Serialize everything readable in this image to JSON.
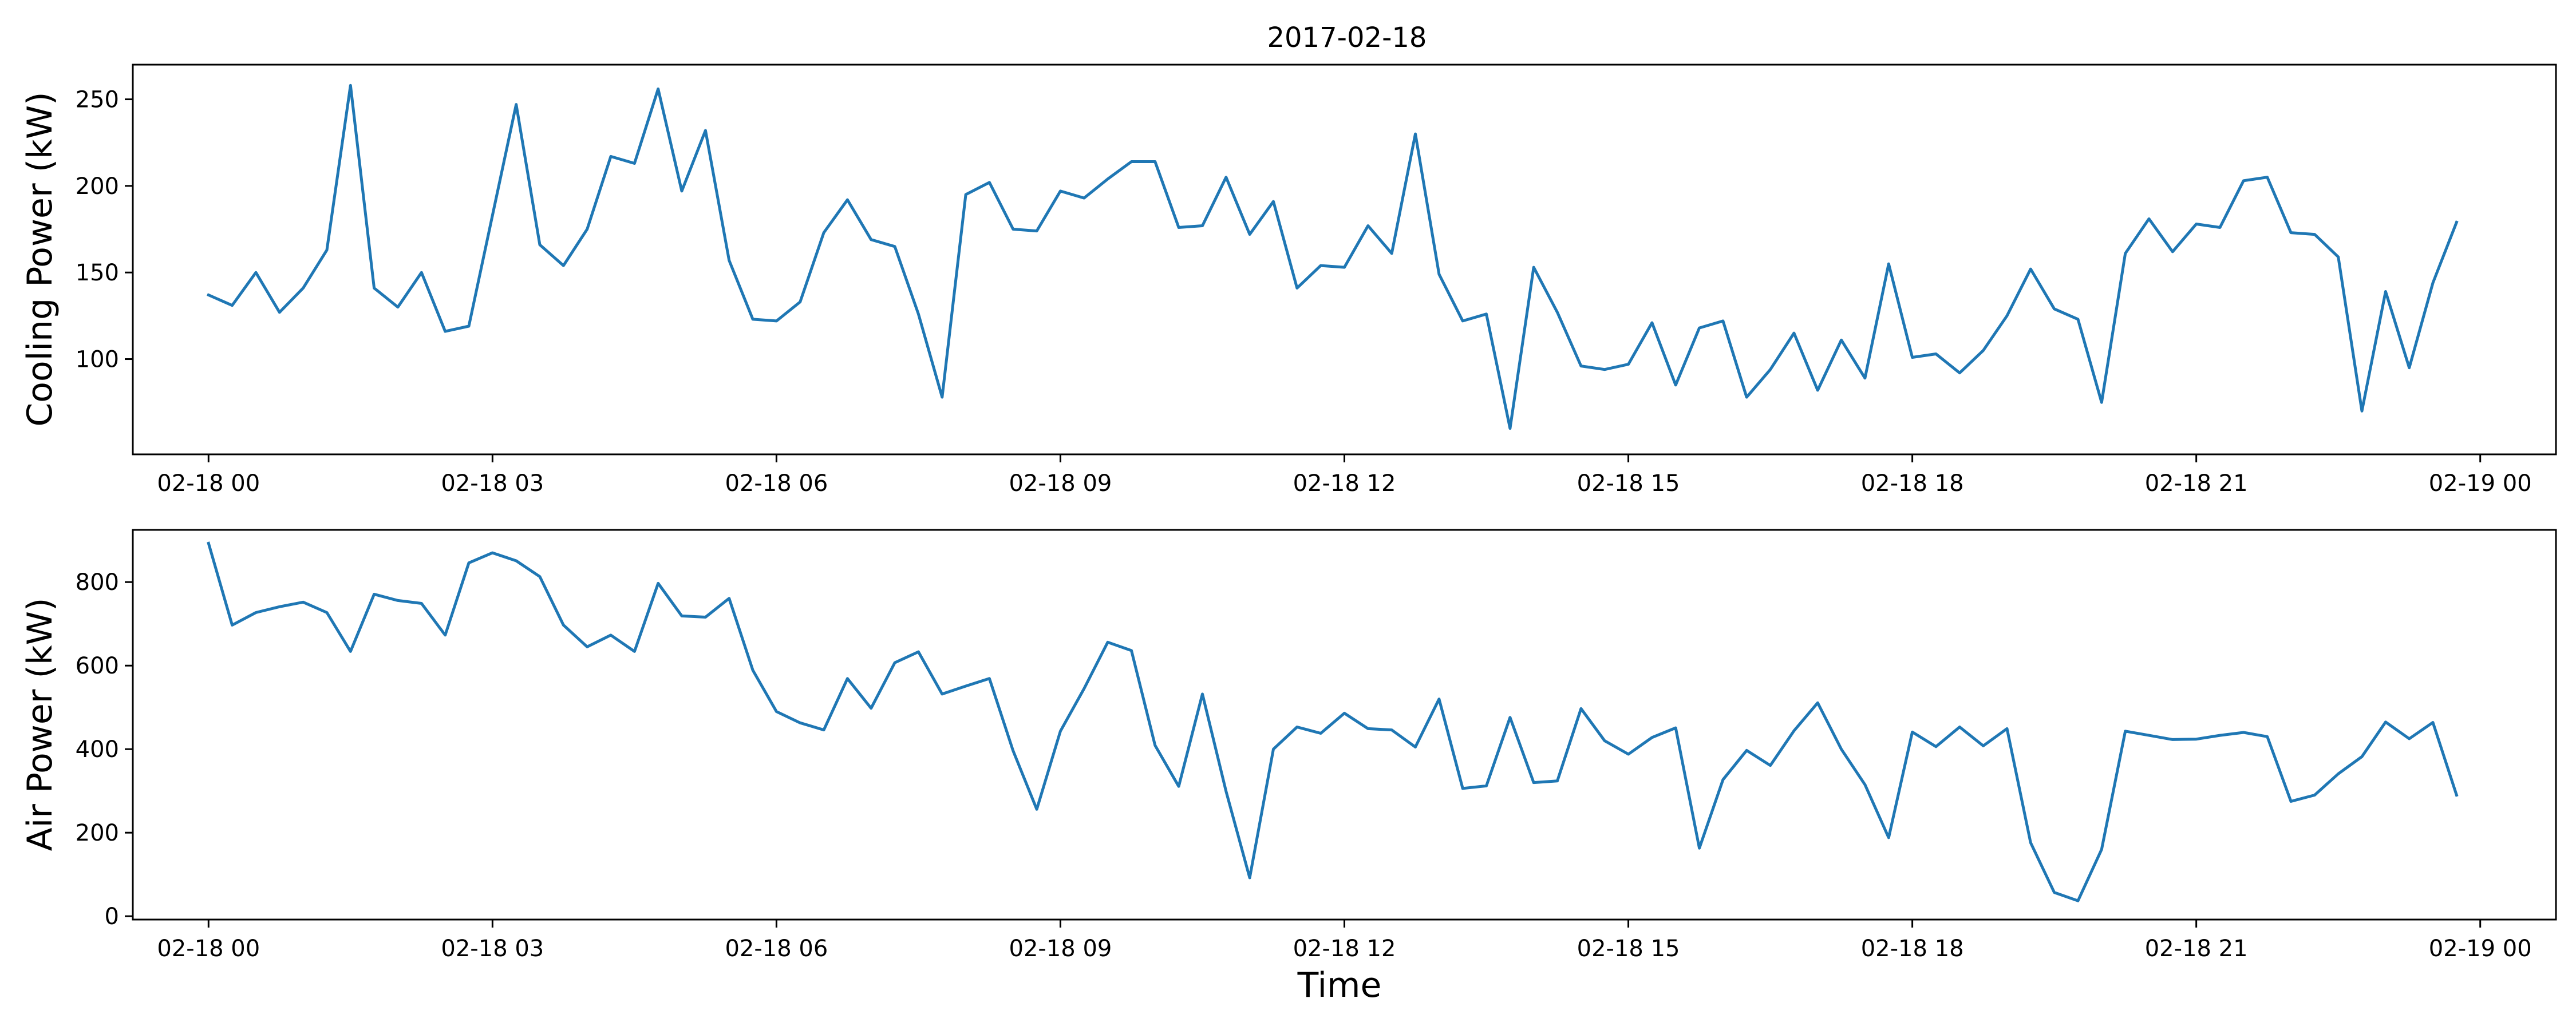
{
  "figure": {
    "title": "2017-02-18",
    "xlabel": "Time"
  },
  "chart_data": [
    {
      "type": "line",
      "title": "2017-02-18",
      "xlabel": "",
      "ylabel": "Cooling Power (kW)",
      "color": "#1f77b4",
      "xlim": [
        "2017-02-17 23:12",
        "2017-02-19 00:48"
      ],
      "ylim": [
        45,
        270
      ],
      "xticks": [
        "2017-02-18 00:00",
        "2017-02-18 03:00",
        "2017-02-18 06:00",
        "2017-02-18 09:00",
        "2017-02-18 12:00",
        "2017-02-18 15:00",
        "2017-02-18 18:00",
        "2017-02-18 21:00",
        "2017-02-19 00:00"
      ],
      "xticklabels": [
        "02-18 00",
        "02-18 03",
        "02-18 06",
        "02-18 09",
        "02-18 12",
        "02-18 15",
        "02-18 18",
        "02-18 21",
        "02-19 00"
      ],
      "yticks": [
        100,
        150,
        200,
        250
      ],
      "yticklabels": [
        "100",
        "150",
        "200",
        "250"
      ],
      "grid": false,
      "x_start": "2017-02-18 00:00",
      "x_interval_minutes": 15,
      "values": [
        137,
        131,
        150,
        127,
        141,
        163,
        258,
        141,
        130,
        150,
        116,
        119,
        183,
        247,
        166,
        154,
        175,
        217,
        213,
        256,
        197,
        232,
        157,
        123,
        122,
        133,
        173,
        192,
        169,
        165,
        126,
        78,
        195,
        202,
        175,
        174,
        197,
        193,
        204,
        214,
        214,
        176,
        177,
        205,
        172,
        191,
        141,
        154,
        153,
        177,
        161,
        230,
        149,
        122,
        126,
        60,
        153,
        127,
        96,
        94,
        97,
        121,
        85,
        118,
        122,
        78,
        94,
        115,
        82,
        111,
        89,
        155,
        101,
        103,
        92,
        105,
        125,
        152,
        129,
        123,
        75,
        161,
        181,
        162,
        178,
        176,
        203,
        205,
        173,
        172,
        159,
        70,
        139,
        95,
        144,
        179
      ]
    },
    {
      "type": "line",
      "title": "",
      "xlabel": "Time",
      "ylabel": "Air Power (kW)",
      "color": "#1f77b4",
      "xlim": [
        "2017-02-17 23:12",
        "2017-02-19 00:48"
      ],
      "ylim": [
        -8,
        925
      ],
      "xticks": [
        "2017-02-18 00:00",
        "2017-02-18 03:00",
        "2017-02-18 06:00",
        "2017-02-18 09:00",
        "2017-02-18 12:00",
        "2017-02-18 15:00",
        "2017-02-18 18:00",
        "2017-02-18 21:00",
        "2017-02-19 00:00"
      ],
      "xticklabels": [
        "02-18 00",
        "02-18 03",
        "02-18 06",
        "02-18 09",
        "02-18 12",
        "02-18 15",
        "02-18 18",
        "02-18 21",
        "02-19 00"
      ],
      "yticks": [
        0,
        200,
        400,
        600,
        800
      ],
      "yticklabels": [
        "0",
        "200",
        "400",
        "600",
        "800"
      ],
      "grid": false,
      "x_start": "2017-02-18 00:00",
      "x_interval_minutes": 15,
      "values": [
        893,
        697,
        727,
        741,
        752,
        727,
        634,
        771,
        756,
        749,
        673,
        846,
        870,
        851,
        813,
        697,
        645,
        673,
        634,
        797,
        719,
        716,
        761,
        589,
        490,
        463,
        446,
        569,
        498,
        607,
        633,
        532,
        551,
        569,
        396,
        256,
        443,
        545,
        656,
        636,
        409,
        311,
        532,
        299,
        92,
        400,
        453,
        438,
        486,
        449,
        446,
        405,
        520,
        306,
        312,
        476,
        320,
        324,
        497,
        420,
        388,
        428,
        451,
        163,
        327,
        397,
        361,
        444,
        511,
        400,
        315,
        188,
        441,
        406,
        453,
        408,
        449,
        176,
        57,
        37,
        160,
        443,
        433,
        423,
        424,
        433,
        440,
        430,
        275,
        290,
        341,
        382,
        465,
        425,
        464,
        290
      ]
    }
  ]
}
